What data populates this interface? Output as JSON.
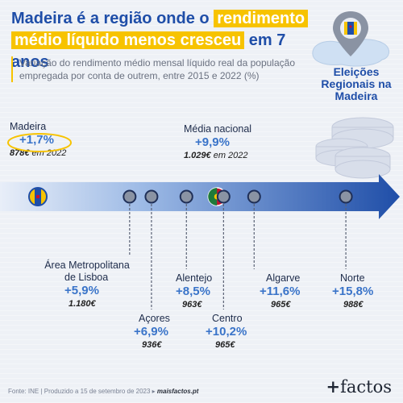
{
  "header": {
    "title_part1": "Madeira é a região onde o",
    "title_hl1": "rendimento",
    "title_hl2": "médio líquido menos cresceu",
    "title_part2": "em 7 anos",
    "subtitle": "Variação do rendimento médio mensal líquido real da população empregada por conta de outrem, entre 2015 e 2022 (%)"
  },
  "badge": {
    "line1": "Eleições",
    "line2": "Regionais na",
    "line3": "Madeira"
  },
  "chart_data": {
    "type": "scatter",
    "x_label": "",
    "points": [
      {
        "name": "Madeira",
        "pct": "+1,7%",
        "pct_value": 1.7,
        "value": "878€",
        "value_suffix": "em 2022"
      },
      {
        "name": "Área Metropolitana de Lisboa",
        "name_line1": "Área Metropolitana",
        "name_line2": "de Lisboa",
        "pct": "+5,9%",
        "pct_value": 5.9,
        "value": "1.180€"
      },
      {
        "name": "Açores",
        "pct": "+6,9%",
        "pct_value": 6.9,
        "value": "936€"
      },
      {
        "name": "Alentejo",
        "pct": "+8,5%",
        "pct_value": 8.5,
        "value": "963€"
      },
      {
        "name": "Média nacional",
        "pct": "+9,9%",
        "pct_value": 9.9,
        "value": "1.029€",
        "value_suffix": "em 2022"
      },
      {
        "name": "Centro",
        "pct": "+10,2%",
        "pct_value": 10.2,
        "value": "965€"
      },
      {
        "name": "Algarve",
        "pct": "+11,6%",
        "pct_value": 11.6,
        "value": "965€"
      },
      {
        "name": "Norte",
        "pct": "+15,8%",
        "pct_value": 15.8,
        "value": "988€"
      }
    ]
  },
  "footer": {
    "source": "Fonte: INE | Produzido a 15 de setembro de 2023 ▸",
    "site": "maisfactos.pt"
  },
  "logo": {
    "plus": "+",
    "text": "factos"
  },
  "colors": {
    "primary": "#1f4ea8",
    "highlight": "#f7c300",
    "value_blue": "#3a74c9"
  }
}
